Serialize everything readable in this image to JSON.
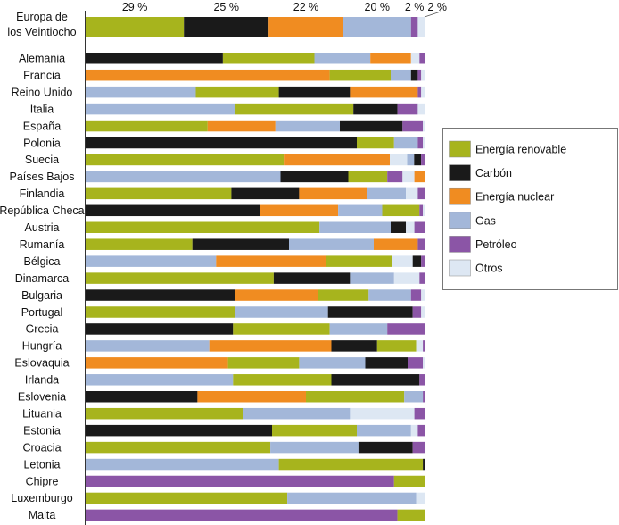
{
  "chart_data": {
    "type": "bar",
    "orientation": "horizontal",
    "stacked": "100%",
    "grid": false,
    "legend_position": "right",
    "series": [
      {
        "name": "Energía renovable",
        "color": "#a7b41d"
      },
      {
        "name": "Carbón",
        "color": "#1a1a1a"
      },
      {
        "name": "Energía nuclear",
        "color": "#f08c21"
      },
      {
        "name": "Gas",
        "color": "#a3b7d9"
      },
      {
        "name": "Petróleo",
        "color": "#8b55a6"
      },
      {
        "name": "Otros",
        "color": "#dde7f3"
      }
    ],
    "eu_row": {
      "label": "Europa de los Veintiocho",
      "label_lines": [
        "Europa de",
        "los Veintiocho"
      ],
      "segments": [
        {
          "series": "Energía renovable",
          "value": 29,
          "label": "29 %"
        },
        {
          "series": "Carbón",
          "value": 25,
          "label": "25 %"
        },
        {
          "series": "Energía nuclear",
          "value": 22,
          "label": "22 %"
        },
        {
          "series": "Gas",
          "value": 20,
          "label": "20 %"
        },
        {
          "series": "Petróleo",
          "value": 2,
          "label": "2 %"
        },
        {
          "series": "Otros",
          "value": 2,
          "label": "2 %"
        }
      ]
    },
    "categories": [
      "Alemania",
      "Francia",
      "Reino Unido",
      "Italia",
      "España",
      "Polonia",
      "Suecia",
      "Países Bajos",
      "Finlandia",
      "República Checa",
      "Austria",
      "Rumanía",
      "Bélgica",
      "Dinamarca",
      "Bulgaria",
      "Portugal",
      "Grecia",
      "Hungría",
      "Eslovaquia",
      "Irlanda",
      "Eslovenia",
      "Lituania",
      "Estonia",
      "Croacia",
      "Letonia",
      "Chipre",
      "Luxemburgo",
      "Malta"
    ],
    "rows": [
      {
        "country": "Alemania",
        "segments": [
          [
            "Carbón",
            40.5
          ],
          [
            "Energía renovable",
            27
          ],
          [
            "Gas",
            16.5
          ],
          [
            "Energía nuclear",
            12
          ],
          [
            "Otros",
            2.5
          ],
          [
            "Petróleo",
            1.5
          ]
        ]
      },
      {
        "country": "Francia",
        "segments": [
          [
            "Energía nuclear",
            72
          ],
          [
            "Energía renovable",
            18
          ],
          [
            "Gas",
            6
          ],
          [
            "Carbón",
            2
          ],
          [
            "Petróleo",
            1
          ],
          [
            "Otros",
            1
          ]
        ]
      },
      {
        "country": "Reino Unido",
        "segments": [
          [
            "Gas",
            32.5
          ],
          [
            "Energía renovable",
            24.5
          ],
          [
            "Carbón",
            21
          ],
          [
            "Energía nuclear",
            20
          ],
          [
            "Petróleo",
            1
          ],
          [
            "Otros",
            1
          ]
        ]
      },
      {
        "country": "Italia",
        "segments": [
          [
            "Gas",
            44
          ],
          [
            "Energía renovable",
            35
          ],
          [
            "Carbón",
            13
          ],
          [
            "Petróleo",
            6
          ],
          [
            "Otros",
            2
          ]
        ]
      },
      {
        "country": "España",
        "segments": [
          [
            "Energía renovable",
            36
          ],
          [
            "Energía nuclear",
            20
          ],
          [
            "Gas",
            19
          ],
          [
            "Carbón",
            18.5
          ],
          [
            "Petróleo",
            6
          ],
          [
            "Otros",
            0.5
          ]
        ]
      },
      {
        "country": "Polonia",
        "segments": [
          [
            "Carbón",
            80
          ],
          [
            "Energía renovable",
            11
          ],
          [
            "Gas",
            7
          ],
          [
            "Petróleo",
            1.5
          ],
          [
            "Otros",
            0.5
          ]
        ]
      },
      {
        "country": "Suecia",
        "segments": [
          [
            "Energía renovable",
            57
          ],
          [
            "Energía nuclear",
            30.5
          ],
          [
            "Otros",
            5
          ],
          [
            "Gas",
            2
          ],
          [
            "Carbón",
            2
          ],
          [
            "Petróleo",
            1
          ]
        ]
      },
      {
        "country": "Países Bajos",
        "segments": [
          [
            "Gas",
            57.5
          ],
          [
            "Carbón",
            20
          ],
          [
            "Energía renovable",
            11.5
          ],
          [
            "Petróleo",
            4.5
          ],
          [
            "Otros",
            3.5
          ],
          [
            "Energía nuclear",
            3
          ]
        ]
      },
      {
        "country": "Finlandia",
        "segments": [
          [
            "Energía renovable",
            43
          ],
          [
            "Carbón",
            20
          ],
          [
            "Energía nuclear",
            20
          ],
          [
            "Gas",
            11.5
          ],
          [
            "Otros",
            3.5
          ],
          [
            "Petróleo",
            2
          ]
        ]
      },
      {
        "country": "República Checa",
        "segments": [
          [
            "Carbón",
            51.5
          ],
          [
            "Energía nuclear",
            23
          ],
          [
            "Gas",
            13
          ],
          [
            "Energía renovable",
            11
          ],
          [
            "Petróleo",
            1
          ],
          [
            "Otros",
            0.5
          ]
        ]
      },
      {
        "country": "Austria",
        "segments": [
          [
            "Energía renovable",
            69
          ],
          [
            "Gas",
            21
          ],
          [
            "Carbón",
            4.5
          ],
          [
            "Otros",
            2.5
          ],
          [
            "Petróleo",
            3
          ]
        ]
      },
      {
        "country": "Rumanía",
        "segments": [
          [
            "Energía renovable",
            31.5
          ],
          [
            "Carbón",
            28.5
          ],
          [
            "Gas",
            25
          ],
          [
            "Energía nuclear",
            13
          ],
          [
            "Petróleo",
            2
          ]
        ]
      },
      {
        "country": "Bélgica",
        "segments": [
          [
            "Gas",
            38.5
          ],
          [
            "Energía nuclear",
            32.5
          ],
          [
            "Energía renovable",
            19.5
          ],
          [
            "Otros",
            6
          ],
          [
            "Carbón",
            2.5
          ],
          [
            "Petróleo",
            1
          ]
        ]
      },
      {
        "country": "Dinamarca",
        "segments": [
          [
            "Energía renovable",
            55.5
          ],
          [
            "Carbón",
            22.5
          ],
          [
            "Gas",
            13
          ],
          [
            "Otros",
            7.5
          ],
          [
            "Petróleo",
            1.5
          ]
        ]
      },
      {
        "country": "Bulgaria",
        "segments": [
          [
            "Carbón",
            44
          ],
          [
            "Energía nuclear",
            24.5
          ],
          [
            "Energía renovable",
            15
          ],
          [
            "Gas",
            12.5
          ],
          [
            "Petróleo",
            3
          ],
          [
            "Otros",
            1
          ]
        ]
      },
      {
        "country": "Portugal",
        "segments": [
          [
            "Energía renovable",
            44
          ],
          [
            "Gas",
            27.5
          ],
          [
            "Carbón",
            25
          ],
          [
            "Petróleo",
            2.5
          ],
          [
            "Otros",
            1
          ]
        ]
      },
      {
        "country": "Grecia",
        "segments": [
          [
            "Carbón",
            43.5
          ],
          [
            "Energía renovable",
            28.5
          ],
          [
            "Gas",
            17
          ],
          [
            "Petróleo",
            11
          ]
        ]
      },
      {
        "country": "Hungría",
        "segments": [
          [
            "Gas",
            36.5
          ],
          [
            "Energía nuclear",
            36
          ],
          [
            "Carbón",
            13.5
          ],
          [
            "Energía renovable",
            11.5
          ],
          [
            "Otros",
            2
          ],
          [
            "Petróleo",
            0.5
          ]
        ]
      },
      {
        "country": "Eslovaquia",
        "segments": [
          [
            "Energía nuclear",
            42
          ],
          [
            "Energía renovable",
            21
          ],
          [
            "Gas",
            19.5
          ],
          [
            "Carbón",
            12.5
          ],
          [
            "Petróleo",
            4.5
          ],
          [
            "Otros",
            0.5
          ]
        ]
      },
      {
        "country": "Irlanda",
        "segments": [
          [
            "Gas",
            43.5
          ],
          [
            "Energía renovable",
            29
          ],
          [
            "Carbón",
            26
          ],
          [
            "Petróleo",
            1.5
          ]
        ]
      },
      {
        "country": "Eslovenia",
        "segments": [
          [
            "Carbón",
            33
          ],
          [
            "Energía nuclear",
            32
          ],
          [
            "Energía renovable",
            29
          ],
          [
            "Gas",
            5.5
          ],
          [
            "Petróleo",
            0.5
          ]
        ]
      },
      {
        "country": "Lituania",
        "segments": [
          [
            "Energía renovable",
            46.5
          ],
          [
            "Gas",
            31.5
          ],
          [
            "Otros",
            19
          ],
          [
            "Petróleo",
            3
          ]
        ]
      },
      {
        "country": "Estonia",
        "segments": [
          [
            "Carbón",
            55
          ],
          [
            "Energía renovable",
            25
          ],
          [
            "Gas",
            16
          ],
          [
            "Otros",
            2
          ],
          [
            "Petróleo",
            2
          ]
        ]
      },
      {
        "country": "Croacia",
        "segments": [
          [
            "Energía renovable",
            54.5
          ],
          [
            "Gas",
            26
          ],
          [
            "Carbón",
            16
          ],
          [
            "Petróleo",
            3.5
          ]
        ]
      },
      {
        "country": "Letonia",
        "segments": [
          [
            "Gas",
            57
          ],
          [
            "Energía renovable",
            42.5
          ],
          [
            "Carbón",
            0.5
          ]
        ]
      },
      {
        "country": "Chipre",
        "segments": [
          [
            "Petróleo",
            91
          ],
          [
            "Energía renovable",
            9
          ]
        ]
      },
      {
        "country": "Luxemburgo",
        "segments": [
          [
            "Energía renovable",
            59.5
          ],
          [
            "Gas",
            38
          ],
          [
            "Otros",
            2.5
          ]
        ]
      },
      {
        "country": "Malta",
        "segments": [
          [
            "Petróleo",
            92
          ],
          [
            "Energía renovable",
            8
          ]
        ]
      }
    ]
  }
}
